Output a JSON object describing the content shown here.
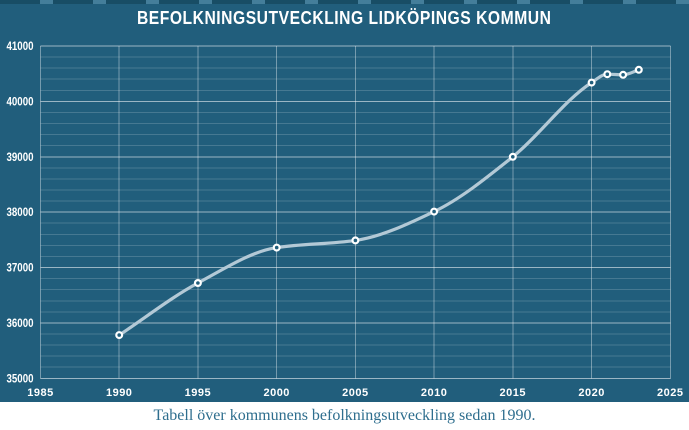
{
  "chart_panel": {
    "title": "BEFOLKNINGSUTVECKLING LIDKÖPINGS KOMMUN"
  },
  "caption": "Tabell över kommunens befolkningsutveckling sedan 1990.",
  "colors": {
    "background": "#215e7c",
    "line": "#b3c9d6",
    "marker_stroke": "#ffffff",
    "marker_fill": "#215e7c",
    "grid_major": "rgba(255,255,255,0.55)",
    "grid_minor": "rgba(255,255,255,0.17)",
    "grid_vertical": "rgba(255,255,255,0.38)",
    "title_text": "#ffffff",
    "tick_text": "#ffffff",
    "caption_text": "#2e6e8e",
    "below_panel": "#ffffff"
  },
  "chart_data": {
    "type": "line",
    "title": "BEFOLKNINGSUTVECKLING LIDKÖPINGS KOMMUN",
    "x": [
      1990,
      1995,
      2000,
      2005,
      2010,
      2015,
      2020,
      2021,
      2022,
      2023
    ],
    "y": [
      35780,
      36720,
      37360,
      37490,
      38010,
      39000,
      40340,
      40490,
      40480,
      40570
    ],
    "xlim": [
      1985,
      2025
    ],
    "ylim": [
      35000,
      41000
    ],
    "x_ticks": [
      1985,
      1990,
      1995,
      2000,
      2005,
      2010,
      2015,
      2020,
      2025
    ],
    "y_ticks": [
      35000,
      36000,
      37000,
      38000,
      39000,
      40000,
      41000
    ],
    "y_minor_step": 200,
    "grid": true,
    "line_style": "smooth",
    "marker": "open-circle",
    "legend_position": "none",
    "xlabel": "",
    "ylabel": ""
  }
}
